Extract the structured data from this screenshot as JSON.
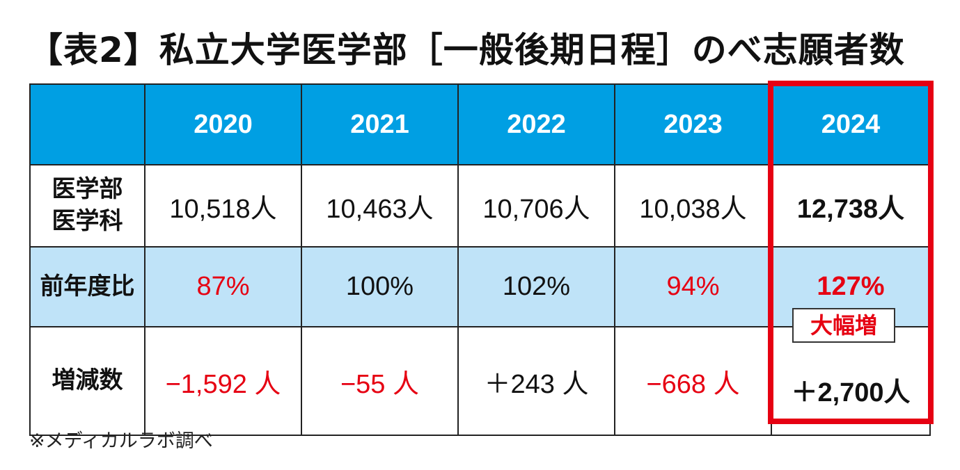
{
  "chart_data": {
    "type": "table",
    "title": "【表2】私立大学医学部［一般後期日程］のべ志願者数",
    "columns": [
      "",
      "2020",
      "2021",
      "2022",
      "2023",
      "2024"
    ],
    "rows": [
      {
        "label": "医学部\n医学科",
        "cells": [
          "10,518人",
          "10,463人",
          "10,706人",
          "10,038人",
          "12,738人"
        ]
      },
      {
        "label": "前年度比",
        "cells": [
          "87%",
          "100%",
          "102%",
          "94%",
          "127%"
        ]
      },
      {
        "label": "増減数",
        "cells": [
          "−1,592 人",
          "−55 人",
          "＋243 人",
          "−668 人",
          "＋2,700人"
        ]
      }
    ],
    "highlight": {
      "column": "2024",
      "badge": "大幅増"
    },
    "colors": {
      "header": "#009fe3",
      "band": "#bfe3f8",
      "negative": "#e60012",
      "highlight": "#e60012"
    }
  },
  "note": "※メディカルラボ調べ"
}
